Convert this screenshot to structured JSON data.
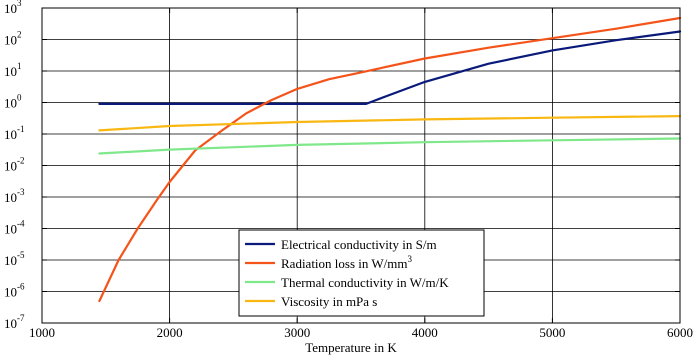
{
  "chart_data": {
    "type": "line",
    "title": "",
    "xlabel": "Temperature in K",
    "ylabel": "",
    "xlim": [
      1000,
      6000
    ],
    "ylim_log10": [
      -7,
      3
    ],
    "yscale": "log",
    "grid": true,
    "legend_position": "bottom-center",
    "x_ticks": [
      1000,
      2000,
      3000,
      4000,
      5000,
      6000
    ],
    "y_tick_exponents": [
      -7,
      -6,
      -5,
      -4,
      -3,
      -2,
      -1,
      0,
      1,
      2,
      3
    ],
    "series": [
      {
        "name": "Electrical conductivity in S/m",
        "legend_label": "Electrical conductivity in S/m",
        "color": "#0a1a7a",
        "x": [
          1450,
          2000,
          2500,
          3000,
          3540,
          3700,
          4000,
          4500,
          5000,
          5500,
          6000
        ],
        "y": [
          0.9,
          0.9,
          0.9,
          0.9,
          0.9,
          1.6,
          4.5,
          17,
          45,
          95,
          180
        ]
      },
      {
        "name": "Radiation loss in W/mm^3",
        "legend_label": "Radiation loss in W/mm",
        "legend_sup": "3",
        "color": "#f4541a",
        "x": [
          1450,
          1600,
          1750,
          1900,
          2000,
          2200,
          2400,
          2600,
          2800,
          3000,
          3250,
          3500,
          4000,
          4500,
          5000,
          5500,
          6000
        ],
        "y": [
          5e-07,
          1e-05,
          0.0001,
          0.0008,
          0.003,
          0.03,
          0.12,
          0.45,
          1.2,
          2.7,
          5.5,
          9,
          25,
          55,
          110,
          220,
          480
        ]
      },
      {
        "name": "Thermal conductivity in W/m/K",
        "legend_label": "Thermal conductivity in W/m/K",
        "color": "#7fe88a",
        "x": [
          1450,
          2000,
          3000,
          4000,
          5000,
          6000
        ],
        "y": [
          0.024,
          0.032,
          0.045,
          0.055,
          0.063,
          0.072
        ]
      },
      {
        "name": "Viscosity in mPa s",
        "legend_label": "Viscosity in mPa s",
        "color": "#f9b712",
        "x": [
          1450,
          2000,
          3000,
          4000,
          5000,
          6000
        ],
        "y": [
          0.13,
          0.18,
          0.24,
          0.29,
          0.33,
          0.37
        ]
      }
    ]
  }
}
